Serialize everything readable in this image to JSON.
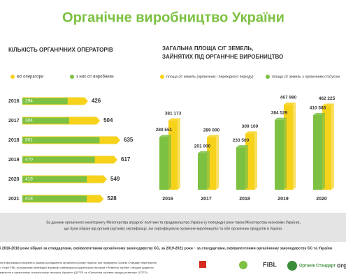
{
  "title": "Органічне виробництво України",
  "chart_data": [
    {
      "type": "bar",
      "orientation": "horizontal",
      "title": "КІЛЬКІСТЬ ОРГАНІЧНИХ ОПЕРАТОРІВ",
      "categories": [
        "2016",
        "2017",
        "2018",
        "2019",
        "2020",
        "2021"
      ],
      "series": [
        {
          "name": "всі оператори",
          "color": "#f7d21b",
          "values": [
            426,
            504,
            635,
            617,
            549,
            528
          ]
        },
        {
          "name": "з них с/г виробники",
          "color": "#7dc142",
          "values": [
            294,
            304,
            501,
            470,
            419,
            418
          ]
        }
      ]
    },
    {
      "type": "bar",
      "orientation": "vertical",
      "title": [
        "ЗАГАЛЬНА ПЛОЩА С/Г ЗЕМЕЛЬ,",
        "ЗАЙНЯТИХ ПІД ОРГАНІЧНЕ ВИРОБНИЦТВО"
      ],
      "categories": [
        "2016",
        "2017",
        "2018",
        "2019",
        "2020"
      ],
      "series": [
        {
          "name": "площа с/г земель (органічних і перехідного періоду)",
          "color": "#f7d21b",
          "values": [
            381173,
            289000,
            309100,
            467980,
            462225
          ],
          "value_labels": [
            "381 173",
            "289 000",
            "309 100",
            "467 980",
            "462 225"
          ]
        },
        {
          "name": "площа с/г земель з органічним статусом",
          "color": "#7dc142",
          "values": [
            289551,
            201000,
            233500,
            384529,
            410583
          ],
          "value_labels": [
            "289 551",
            "201 000",
            "233 500",
            "384 529",
            "410 583"
          ]
        }
      ]
    }
  ],
  "notes": {
    "source": [
      "За даними органічного моніторингу Міністерства аграрної політики та продовольства України (у попередні роки також Міністерства економіки України),",
      "що були зібрані від органів (органів) сертифікації, які сертифікували органічне виробництво та обіг органічних продуктів в Україні."
    ],
    "standards": "і 2016-2018 роки зібрані за стандартами, еквівалентними органічному законодавству ЄС, за 2019-2021 роки – за стандартами, еквівалентними органічному законодавству ЄС та України",
    "footer": [
      "на інфографіка створена в рамках дослідження органічного ринку України, яке проведено Органік Стандарт партнерстві",
      "з Отділ FiBL на підтримки Швейцарії в рамках швейцарсько-українських програм «Розвиток торгівлі з вищою доданою",
      "вартістю в органічному та молочному секторах України» (QFTP) та «Органічна торгівля заради розвитку» (OTFD)"
    ]
  },
  "logos": [
    "FiBL",
    "Органік Стандарт",
    "org"
  ]
}
